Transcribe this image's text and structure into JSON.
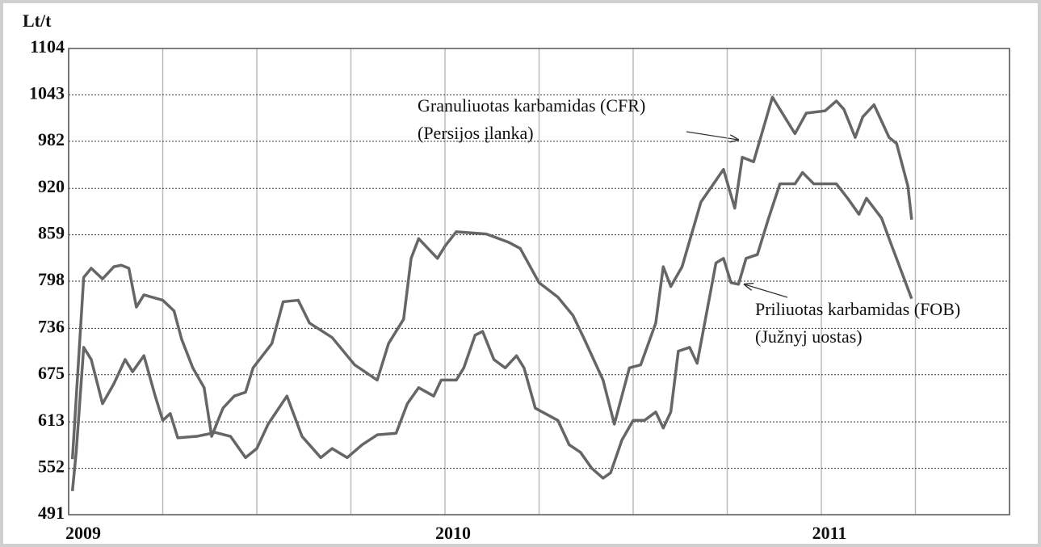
{
  "chart_data": {
    "type": "line",
    "y_label": "Lt/t",
    "xlim": [
      2009,
      2011.5
    ],
    "xticks": [
      2009,
      2010,
      2011
    ],
    "x_grid": [
      2009.25,
      2009.5,
      2009.75,
      2010.25,
      2010.5,
      2010.75,
      2011.25,
      2011.5
    ],
    "ylim": [
      491,
      1104
    ],
    "yticks": [
      491,
      552,
      613,
      675,
      736,
      798,
      859,
      920,
      982,
      1043,
      1104
    ],
    "grid": true,
    "series": [
      {
        "name": "Granuliuotas karbamidas (CFR)",
        "color": "#666666",
        "x": [
          2009.01,
          2009.04,
          2009.06,
          2009.09,
          2009.12,
          2009.14,
          2009.16,
          2009.18,
          2009.2,
          2009.25,
          2009.28,
          2009.3,
          2009.33,
          2009.36,
          2009.38,
          2009.41,
          2009.44,
          2009.47,
          2009.49,
          2009.54,
          2009.57,
          2009.61,
          2009.64,
          2009.7,
          2009.76,
          2009.82,
          2009.85,
          2009.89,
          2009.91,
          2009.93,
          2009.98,
          2010.0,
          2010.03,
          2010.11,
          2010.17,
          2010.2,
          2010.25,
          2010.3,
          2010.34,
          2010.37,
          2010.42,
          2010.45,
          2010.47,
          2010.49,
          2010.52,
          2010.56,
          2010.58,
          2010.6,
          2010.63,
          2010.68,
          2010.74,
          2010.77,
          2010.79,
          2010.82,
          2010.87,
          2010.93,
          2010.96,
          2011.01,
          2011.04,
          2011.06,
          2011.09,
          2011.11,
          2011.14,
          2011.18,
          2011.2,
          2011.23,
          2011.24
        ],
        "values": [
          564,
          803,
          815,
          801,
          817,
          819,
          815,
          764,
          780,
          773,
          759,
          722,
          684,
          658,
          594,
          631,
          647,
          652,
          684,
          716,
          771,
          773,
          743,
          724,
          688,
          668,
          716,
          748,
          828,
          854,
          828,
          844,
          863,
          860,
          849,
          841,
          796,
          777,
          753,
          722,
          668,
          610,
          647,
          684,
          688,
          743,
          817,
          791,
          817,
          902,
          945,
          894,
          961,
          955,
          1040,
          992,
          1019,
          1022,
          1035,
          1024,
          987,
          1014,
          1030,
          987,
          979,
          923,
          879
        ]
      },
      {
        "name": "Priliuotas karbamidas (FOB)",
        "color": "#666666",
        "x": [
          2009.01,
          2009.02,
          2009.04,
          2009.06,
          2009.09,
          2009.12,
          2009.15,
          2009.17,
          2009.2,
          2009.23,
          2009.25,
          2009.27,
          2009.29,
          2009.34,
          2009.39,
          2009.43,
          2009.47,
          2009.5,
          2009.53,
          2009.58,
          2009.62,
          2009.67,
          2009.7,
          2009.74,
          2009.78,
          2009.82,
          2009.87,
          2009.9,
          2009.93,
          2009.97,
          2009.99,
          2010.03,
          2010.05,
          2010.08,
          2010.1,
          2010.13,
          2010.16,
          2010.19,
          2010.21,
          2010.24,
          2010.3,
          2010.33,
          2010.36,
          2010.39,
          2010.42,
          2010.44,
          2010.47,
          2010.5,
          2010.53,
          2010.56,
          2010.58,
          2010.6,
          2010.62,
          2010.65,
          2010.67,
          2010.72,
          2010.74,
          2010.76,
          2010.78,
          2010.8,
          2010.83,
          2010.86,
          2010.89,
          2010.93,
          2010.95,
          2010.98,
          2011.04,
          2011.07,
          2011.1,
          2011.12,
          2011.16,
          2011.18,
          2011.24
        ],
        "values": [
          522,
          573,
          711,
          695,
          637,
          663,
          695,
          679,
          700,
          647,
          615,
          624,
          592,
          594,
          599,
          594,
          566,
          578,
          610,
          647,
          594,
          566,
          578,
          566,
          583,
          596,
          598,
          637,
          658,
          647,
          668,
          668,
          684,
          727,
          732,
          695,
          684,
          700,
          684,
          631,
          615,
          583,
          573,
          552,
          539,
          546,
          589,
          615,
          615,
          626,
          605,
          626,
          706,
          711,
          690,
          822,
          828,
          796,
          794,
          828,
          833,
          881,
          926,
          926,
          941,
          926,
          926,
          907,
          886,
          907,
          881,
          854,
          775
        ]
      }
    ],
    "annotations": [
      {
        "lines": [
          "Granuliuotas karbamidas (CFR)",
          "(Persijos įlanka)"
        ]
      },
      {
        "lines": [
          "Priliuotas karbamidas (FOB)",
          "(Južnyj uostas)"
        ]
      }
    ]
  }
}
